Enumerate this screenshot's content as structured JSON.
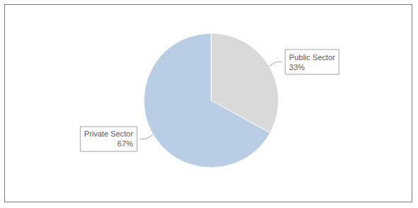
{
  "chart_data": {
    "type": "pie",
    "categories": [
      "Public Sector",
      "Private Sector"
    ],
    "values": [
      33,
      67
    ],
    "value_labels": [
      "33%",
      "67%"
    ],
    "colors": [
      "#d9d9d9",
      "#b9cde5"
    ],
    "data_labels": true
  }
}
